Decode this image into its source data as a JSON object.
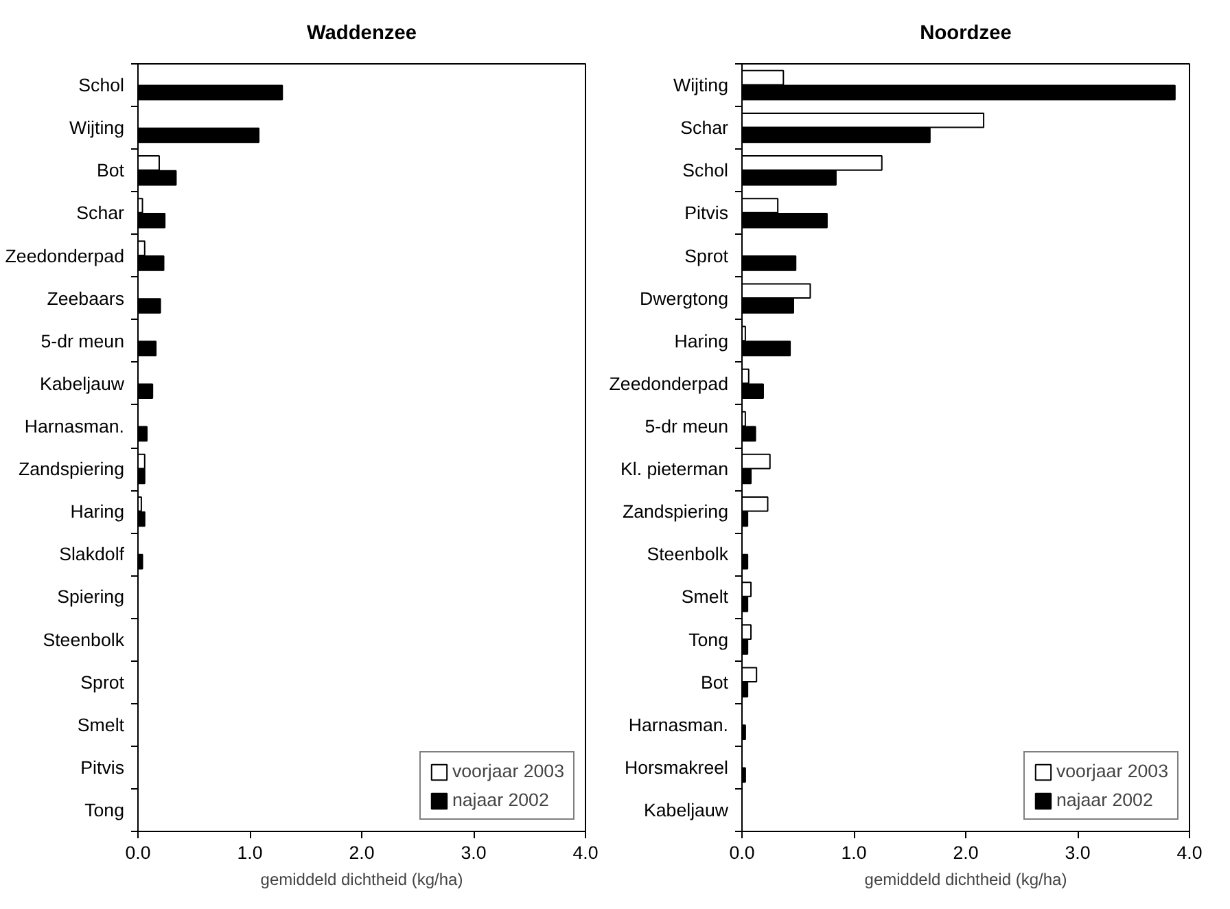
{
  "chart_data": [
    {
      "type": "bar",
      "orientation": "horizontal",
      "title": "Waddenzee",
      "xlabel": "gemiddeld dichtheid (kg/ha)",
      "categories": [
        "Schol",
        "Wijting",
        "Bot",
        "Schar",
        "Zeedonderpad",
        "Zeebaars",
        "5-dr meun",
        "Kabeljauw",
        "Harnasman.",
        "Zandspiering",
        "Haring",
        "Slakdolf",
        "Spiering",
        "Steenbolk",
        "Sprot",
        "Smelt",
        "Pitvis",
        "Tong"
      ],
      "series": [
        {
          "name": "voorjaar 2003",
          "color": "#ffffff",
          "values": [
            null,
            null,
            0.19,
            0.04,
            0.06,
            null,
            null,
            null,
            null,
            0.06,
            0.03,
            null,
            null,
            null,
            null,
            null,
            null,
            null
          ]
        },
        {
          "name": "najaar 2002",
          "color": "#000000",
          "values": [
            1.29,
            1.08,
            0.34,
            0.24,
            0.23,
            0.2,
            0.16,
            0.13,
            0.08,
            0.06,
            0.06,
            0.04,
            null,
            null,
            null,
            null,
            null,
            null
          ]
        }
      ],
      "xlim": [
        0,
        4
      ],
      "xticks": [
        {
          "value": 0,
          "label": "0.0"
        },
        {
          "value": 1,
          "label": "1.0"
        },
        {
          "value": 2,
          "label": "2.0"
        },
        {
          "value": 3,
          "label": "3.0"
        },
        {
          "value": 4,
          "label": "4.0"
        }
      ],
      "legend": "bottom right"
    },
    {
      "type": "bar",
      "orientation": "horizontal",
      "title": "Noordzee",
      "xlabel": "gemiddeld dichtheid (kg/ha)",
      "categories": [
        "Wijting",
        "Schar",
        "Schol",
        "Pitvis",
        "Sprot",
        "Dwergtong",
        "Haring",
        "Zeedonderpad",
        "5-dr meun",
        "Kl. pieterman",
        "Zandspiering",
        "Steenbolk",
        "Smelt",
        "Tong",
        "Bot",
        "Harnasman.",
        "Horsmakreel",
        "Kabeljauw"
      ],
      "series": [
        {
          "name": "voorjaar 2003",
          "color": "#ffffff",
          "values": [
            0.37,
            2.16,
            1.25,
            0.32,
            null,
            0.61,
            0.03,
            0.06,
            0.03,
            0.25,
            0.23,
            null,
            0.08,
            0.08,
            0.13,
            null,
            null,
            null
          ]
        },
        {
          "name": "najaar 2002",
          "color": "#000000",
          "values": [
            3.87,
            1.68,
            0.84,
            0.76,
            0.48,
            0.46,
            0.43,
            0.19,
            0.12,
            0.08,
            0.05,
            0.05,
            0.05,
            0.05,
            0.05,
            0.03,
            0.03,
            null
          ]
        }
      ],
      "xlim": [
        0,
        4
      ],
      "xticks": [
        {
          "value": 0,
          "label": "0.0"
        },
        {
          "value": 1,
          "label": "1.0"
        },
        {
          "value": 2,
          "label": "2.0"
        },
        {
          "value": 3,
          "label": "3.0"
        },
        {
          "value": 4,
          "label": "4.0"
        }
      ],
      "legend": "bottom right"
    }
  ]
}
